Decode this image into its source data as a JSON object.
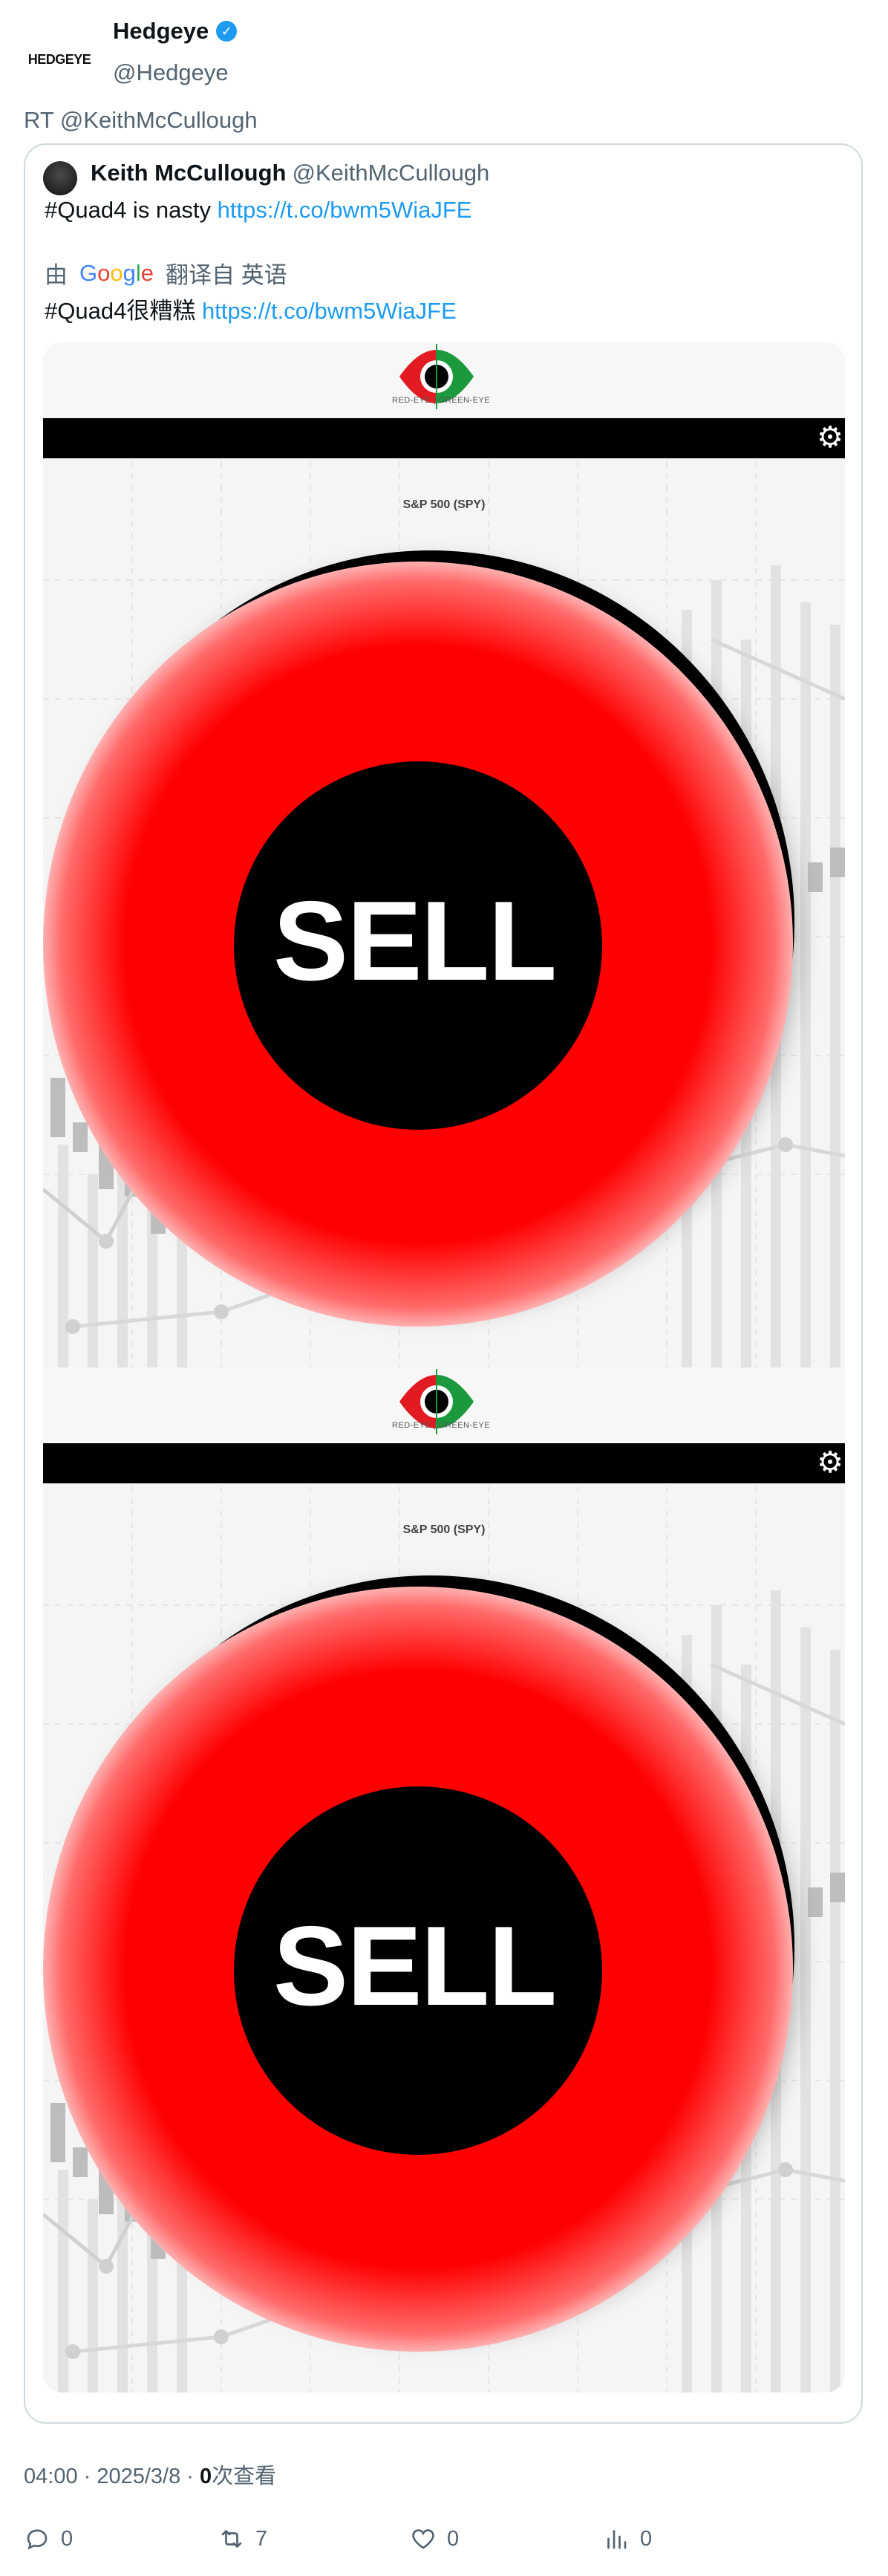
{
  "header": {
    "avatar_text": "HEDGEYE",
    "name": "Hedgeye",
    "handle": "@Hedgeye",
    "verified_mark": "✓"
  },
  "retweet_line": "RT @KeithMcCullough",
  "quote": {
    "name": "Keith McCullough",
    "handle": "@KeithMcCullough",
    "text": "#Quad4 is nasty ",
    "link": "https://t.co/bwm5WiaJFE",
    "translate_prefix": "由",
    "google": [
      "G",
      "o",
      "o",
      "g",
      "l",
      "e"
    ],
    "translate_suffix": "翻译自 英语",
    "translated_text": "#Quad4很糟糕 ",
    "translated_link": "https://t.co/bwm5WiaJFE"
  },
  "media": {
    "panels": [
      {
        "eye_caption": "RED-EYE | GREEN-EYE",
        "chart_title": "S&P 500 (SPY)",
        "button_label": "SELL"
      },
      {
        "eye_caption": "RED-EYE | GREEN-EYE",
        "chart_title": "S&P 500 (SPY)",
        "button_label": "SELL"
      }
    ],
    "colors": {
      "button_red": "#ff0000",
      "button_rim": "#000000"
    }
  },
  "footer": {
    "time": "04:00 · 2025/3/8 · ",
    "views_count": "0",
    "views_label": "次查看"
  },
  "actions": {
    "reply_count": "0",
    "retweet_count": "7",
    "like_count": "0",
    "views_count": "0"
  }
}
